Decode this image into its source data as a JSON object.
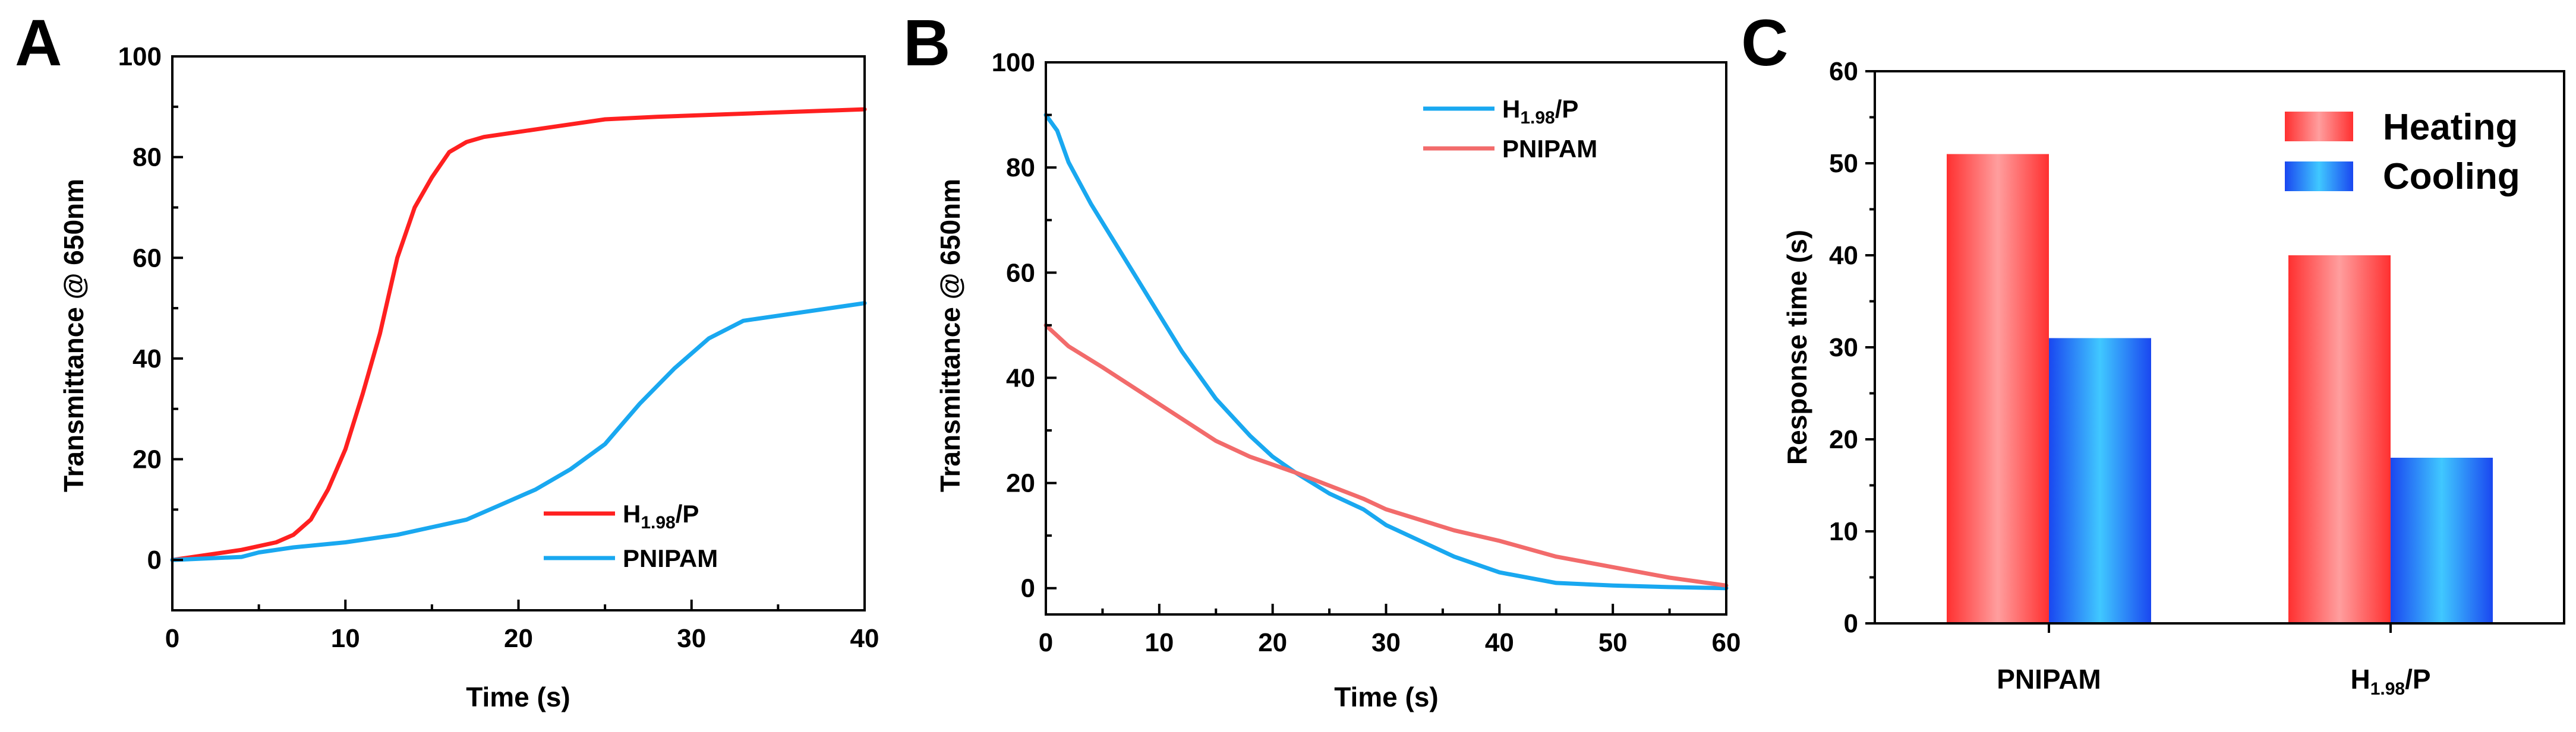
{
  "colors": {
    "red": "#ff2020",
    "red_light": "#f26b6b",
    "blue": "#19a8f0",
    "bar_red_edge": "#ff3030",
    "bar_red_center": "#ff9e9e",
    "bar_blue_edge": "#1a47f0",
    "bar_blue_center": "#40c8ff"
  },
  "chart_data": [
    {
      "panel": "A",
      "type": "line",
      "xlabel": "Time (s)",
      "ylabel": "Transmittance @ 650nm",
      "xlim": [
        0,
        40
      ],
      "ylim": [
        -10,
        100
      ],
      "xticks": [
        0,
        10,
        20,
        30,
        40
      ],
      "yticks": [
        0,
        20,
        40,
        60,
        80,
        100
      ],
      "legend_position": "bottom-right",
      "series": [
        {
          "name": "H1.98/P",
          "label_main": "H",
          "label_sub": "1.98",
          "label_tail": "/P",
          "color": "#ff2020",
          "x": [
            0,
            2,
            4,
            6,
            7,
            8,
            9,
            10,
            11,
            12,
            13,
            14,
            15,
            16,
            17,
            18,
            20,
            22,
            25,
            28,
            32,
            36,
            40
          ],
          "y": [
            0,
            1,
            2,
            3.5,
            5,
            8,
            14,
            22,
            33,
            45,
            60,
            70,
            76,
            81,
            83,
            84,
            85,
            86,
            87.5,
            88,
            88.5,
            89,
            89.5
          ]
        },
        {
          "name": "PNIPAM",
          "label_main": "PNIPAM",
          "color": "#19a8f0",
          "x": [
            0,
            2,
            4,
            5,
            7,
            10,
            13,
            15,
            17,
            19,
            21,
            23,
            25,
            27,
            29,
            31,
            33,
            35,
            38,
            40
          ],
          "y": [
            0,
            0.3,
            0.6,
            1.5,
            2.5,
            3.5,
            5,
            6.5,
            8,
            11,
            14,
            18,
            23,
            31,
            38,
            44,
            47.5,
            48.5,
            50,
            51
          ]
        }
      ]
    },
    {
      "panel": "B",
      "type": "line",
      "xlabel": "Time (s)",
      "ylabel": "Transmittance @ 650nm",
      "xlim": [
        0,
        60
      ],
      "ylim": [
        -5,
        100
      ],
      "xticks": [
        0,
        10,
        20,
        30,
        40,
        50,
        60
      ],
      "yticks": [
        0,
        20,
        40,
        60,
        80,
        100
      ],
      "legend_position": "top-right",
      "series": [
        {
          "name": "H1.98/P",
          "label_main": "H",
          "label_sub": "1.98",
          "label_tail": "/P",
          "color": "#19a8f0",
          "x": [
            0,
            1,
            2,
            4,
            6,
            8,
            10,
            12,
            15,
            18,
            20,
            22,
            25,
            28,
            30,
            33,
            36,
            40,
            45,
            50,
            55,
            60
          ],
          "y": [
            90,
            87,
            81,
            73,
            66,
            59,
            52,
            45,
            36,
            29,
            25,
            22,
            18,
            15,
            12,
            9,
            6,
            3,
            1,
            0.5,
            0.2,
            0
          ]
        },
        {
          "name": "PNIPAM",
          "label_main": "PNIPAM",
          "color": "#f26b6b",
          "x": [
            0,
            1,
            2,
            5,
            10,
            15,
            18,
            20,
            22,
            25,
            28,
            30,
            33,
            36,
            40,
            45,
            50,
            55,
            60
          ],
          "y": [
            50,
            48,
            46,
            42,
            35,
            28,
            25,
            23.5,
            22,
            19.5,
            17,
            15,
            13,
            11,
            9,
            6,
            4,
            2,
            0.5
          ]
        }
      ]
    },
    {
      "panel": "C",
      "type": "bar",
      "xlabel": "",
      "ylabel": "Response time (s)",
      "ylim": [
        0,
        60
      ],
      "yticks": [
        0,
        10,
        20,
        30,
        40,
        50,
        60
      ],
      "legend_position": "top-right",
      "categories": [
        {
          "main": "PNIPAM"
        },
        {
          "main": "H",
          "sub": "1.98",
          "tail": "/P"
        }
      ],
      "series": [
        {
          "name": "Heating",
          "values": [
            51,
            40
          ]
        },
        {
          "name": "Cooling",
          "values": [
            31,
            18
          ]
        }
      ]
    }
  ]
}
